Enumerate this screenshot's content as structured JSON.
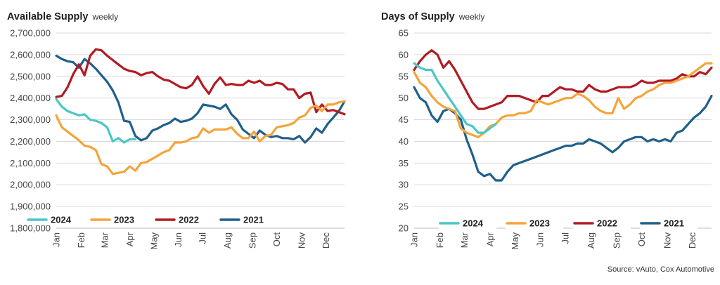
{
  "source": "Source: vAuto, Cox Automotive",
  "chart_data": [
    {
      "type": "line",
      "title": "Available Supply",
      "subtitle": "weekly",
      "xlabel": "",
      "ylabel": "",
      "ylim": [
        1800000,
        2700000
      ],
      "yticks": [
        1800000,
        1900000,
        2000000,
        2100000,
        2200000,
        2300000,
        2400000,
        2500000,
        2600000,
        2700000
      ],
      "ytick_labels": [
        "1,800,000",
        "1,900,000",
        "2,000,000",
        "2,100,000",
        "2,200,000",
        "2,300,000",
        "2,400,000",
        "2,500,000",
        "2,600,000",
        "2,700,000"
      ],
      "x_axis": "week of year",
      "xlim": [
        1,
        52
      ],
      "month_labels": [
        "Jan",
        "Feb",
        "Mar",
        "Apr",
        "May",
        "Jun",
        "Jul",
        "Aug",
        "Sep",
        "Oct",
        "Nov",
        "Dec"
      ],
      "grid": true,
      "legend": "bottom",
      "series": [
        {
          "name": "2024",
          "color": "#4bc6c8",
          "x": [
            1,
            2,
            3,
            4,
            5,
            6,
            7,
            8,
            9,
            10,
            11,
            12,
            13,
            14,
            15
          ],
          "values": [
            2395000,
            2360000,
            2340000,
            2330000,
            2320000,
            2325000,
            2300000,
            2295000,
            2285000,
            2265000,
            2200000,
            2215000,
            2195000,
            2210000,
            2210000
          ]
        },
        {
          "name": "2023",
          "color": "#f4a43a",
          "x": [
            1,
            2,
            3,
            4,
            5,
            6,
            7,
            8,
            9,
            10,
            11,
            12,
            13,
            14,
            15,
            16,
            17,
            18,
            19,
            20,
            21,
            22,
            23,
            24,
            25,
            26,
            27,
            28,
            29,
            30,
            31,
            32,
            33,
            34,
            35,
            36,
            37,
            38,
            39,
            40,
            41,
            42,
            43,
            44,
            45,
            46,
            47,
            48,
            49,
            50,
            51,
            52
          ],
          "values": [
            2320000,
            2265000,
            2245000,
            2225000,
            2205000,
            2180000,
            2175000,
            2160000,
            2095000,
            2085000,
            2050000,
            2055000,
            2060000,
            2085000,
            2065000,
            2100000,
            2105000,
            2120000,
            2135000,
            2150000,
            2160000,
            2195000,
            2195000,
            2200000,
            2215000,
            2220000,
            2260000,
            2240000,
            2255000,
            2255000,
            2255000,
            2265000,
            2235000,
            2215000,
            2215000,
            2245000,
            2200000,
            2225000,
            2230000,
            2265000,
            2270000,
            2275000,
            2285000,
            2310000,
            2320000,
            2355000,
            2365000,
            2340000,
            2370000,
            2370000,
            2380000,
            2385000
          ]
        },
        {
          "name": "2022",
          "color": "#b11b23",
          "x": [
            1,
            2,
            3,
            4,
            5,
            6,
            7,
            8,
            9,
            10,
            11,
            12,
            13,
            14,
            15,
            16,
            17,
            18,
            19,
            20,
            21,
            22,
            23,
            24,
            25,
            26,
            27,
            28,
            29,
            30,
            31,
            32,
            33,
            34,
            35,
            36,
            37,
            38,
            39,
            40,
            41,
            42,
            43,
            44,
            45,
            46,
            47,
            48,
            49,
            50,
            51,
            52
          ],
          "values": [
            2405000,
            2410000,
            2450000,
            2510000,
            2555000,
            2505000,
            2595000,
            2625000,
            2620000,
            2595000,
            2575000,
            2555000,
            2535000,
            2525000,
            2520000,
            2505000,
            2515000,
            2520000,
            2500000,
            2485000,
            2480000,
            2465000,
            2450000,
            2445000,
            2460000,
            2500000,
            2455000,
            2420000,
            2465000,
            2495000,
            2460000,
            2465000,
            2460000,
            2460000,
            2480000,
            2470000,
            2480000,
            2460000,
            2460000,
            2470000,
            2465000,
            2440000,
            2440000,
            2400000,
            2420000,
            2425000,
            2335000,
            2370000,
            2340000,
            2345000,
            2335000,
            2325000
          ]
        },
        {
          "name": "2021",
          "color": "#1f5f8b",
          "x": [
            1,
            2,
            3,
            4,
            5,
            6,
            7,
            8,
            9,
            10,
            11,
            12,
            13,
            14,
            15,
            16,
            17,
            18,
            19,
            20,
            21,
            22,
            23,
            24,
            25,
            26,
            27,
            28,
            29,
            30,
            31,
            32,
            33,
            34,
            35,
            36,
            37,
            38,
            39,
            40,
            41,
            42,
            43,
            44,
            45,
            46,
            47,
            48,
            49,
            50,
            51,
            52
          ],
          "values": [
            2595000,
            2580000,
            2570000,
            2565000,
            2540000,
            2580000,
            2560000,
            2535000,
            2505000,
            2475000,
            2435000,
            2380000,
            2295000,
            2290000,
            2225000,
            2205000,
            2215000,
            2250000,
            2260000,
            2275000,
            2285000,
            2305000,
            2290000,
            2295000,
            2305000,
            2330000,
            2370000,
            2365000,
            2360000,
            2350000,
            2370000,
            2325000,
            2300000,
            2255000,
            2235000,
            2215000,
            2250000,
            2230000,
            2220000,
            2225000,
            2215000,
            2215000,
            2210000,
            2225000,
            2195000,
            2220000,
            2260000,
            2240000,
            2280000,
            2310000,
            2340000,
            2385000
          ]
        }
      ]
    },
    {
      "type": "line",
      "title": "Days of Supply",
      "subtitle": "weekly",
      "xlabel": "",
      "ylabel": "",
      "ylim": [
        20,
        65
      ],
      "yticks": [
        20,
        25,
        30,
        35,
        40,
        45,
        50,
        55,
        60,
        65
      ],
      "ytick_labels": [
        "20",
        "25",
        "30",
        "35",
        "40",
        "45",
        "50",
        "55",
        "60",
        "65"
      ],
      "x_axis": "week of year",
      "xlim": [
        1,
        52
      ],
      "month_labels": [
        "Jan",
        "Feb",
        "Mar",
        "Apr",
        "May",
        "Jun",
        "Jul",
        "Aug",
        "Sep",
        "Oct",
        "Nov",
        "Dec"
      ],
      "grid": true,
      "legend": "bottom",
      "series": [
        {
          "name": "2024",
          "color": "#4bc6c8",
          "x": [
            1,
            2,
            3,
            4,
            5,
            6,
            7,
            8,
            9,
            10,
            11,
            12,
            13,
            14,
            15
          ],
          "values": [
            58.0,
            57.0,
            56.5,
            56.5,
            54.0,
            52.0,
            50.0,
            48.0,
            46.0,
            44.0,
            43.5,
            42.0,
            42.0,
            43.0,
            44.0
          ]
        },
        {
          "name": "2023",
          "color": "#f4a43a",
          "x": [
            1,
            2,
            3,
            4,
            5,
            6,
            7,
            8,
            9,
            10,
            11,
            12,
            13,
            14,
            15,
            16,
            17,
            18,
            19,
            20,
            21,
            22,
            23,
            24,
            25,
            26,
            27,
            28,
            29,
            30,
            31,
            32,
            33,
            34,
            35,
            36,
            37,
            38,
            39,
            40,
            41,
            42,
            43,
            44,
            45,
            46,
            47,
            48,
            49,
            50,
            51,
            52
          ],
          "values": [
            56.0,
            53.5,
            52.5,
            50.5,
            49.0,
            48.0,
            47.5,
            47.0,
            43.0,
            42.0,
            41.5,
            41.0,
            42.0,
            43.5,
            44.0,
            45.5,
            46.0,
            46.0,
            46.5,
            46.5,
            47.0,
            49.5,
            49.0,
            48.5,
            49.0,
            49.5,
            50.0,
            50.0,
            51.0,
            50.5,
            49.5,
            48.0,
            47.0,
            46.5,
            46.5,
            50.0,
            47.5,
            48.5,
            50.0,
            50.5,
            51.5,
            52.0,
            53.0,
            53.5,
            53.5,
            54.0,
            54.5,
            55.0,
            56.0,
            57.0,
            58.0,
            58.0
          ]
        },
        {
          "name": "2022",
          "color": "#b11b23",
          "x": [
            1,
            2,
            3,
            4,
            5,
            6,
            7,
            8,
            9,
            10,
            11,
            12,
            13,
            14,
            15,
            16,
            17,
            18,
            19,
            20,
            21,
            22,
            23,
            24,
            25,
            26,
            27,
            28,
            29,
            30,
            31,
            32,
            33,
            34,
            35,
            36,
            37,
            38,
            39,
            40,
            41,
            42,
            43,
            44,
            45,
            46,
            47,
            48,
            49,
            50,
            51,
            52
          ],
          "values": [
            56.5,
            58.5,
            60.0,
            61.0,
            60.0,
            57.0,
            58.5,
            56.5,
            54.0,
            51.5,
            49.0,
            47.5,
            47.5,
            48.0,
            48.5,
            49.0,
            50.5,
            50.5,
            50.5,
            50.0,
            49.5,
            49.0,
            50.5,
            50.5,
            51.5,
            52.5,
            52.0,
            52.0,
            51.5,
            51.5,
            53.0,
            52.0,
            51.5,
            51.5,
            52.0,
            52.5,
            52.5,
            52.5,
            53.0,
            54.0,
            53.5,
            53.5,
            54.0,
            54.0,
            54.0,
            54.5,
            55.5,
            55.0,
            55.0,
            56.0,
            55.5,
            57.0
          ]
        },
        {
          "name": "2021",
          "color": "#1f5f8b",
          "x": [
            1,
            2,
            3,
            4,
            5,
            6,
            7,
            8,
            9,
            10,
            11,
            12,
            13,
            14,
            15,
            16,
            17,
            18,
            19,
            20,
            21,
            22,
            23,
            24,
            25,
            26,
            27,
            28,
            29,
            30,
            31,
            32,
            33,
            34,
            35,
            36,
            37,
            38,
            39,
            40,
            41,
            42,
            43,
            44,
            45,
            46,
            47,
            48,
            49,
            50,
            51,
            52
          ],
          "values": [
            52.5,
            50.0,
            49.0,
            46.0,
            44.5,
            47.0,
            47.5,
            46.5,
            45.0,
            40.5,
            37.0,
            33.0,
            32.0,
            32.5,
            31.0,
            31.0,
            33.0,
            34.5,
            35.0,
            35.5,
            36.0,
            36.5,
            37.0,
            37.5,
            38.0,
            38.5,
            39.0,
            39.0,
            39.5,
            39.5,
            40.5,
            40.0,
            39.5,
            38.5,
            37.5,
            38.5,
            40.0,
            40.5,
            41.0,
            41.0,
            40.0,
            40.5,
            40.0,
            40.5,
            40.0,
            42.0,
            42.5,
            44.0,
            45.5,
            46.5,
            48.0,
            50.5
          ]
        }
      ]
    }
  ]
}
